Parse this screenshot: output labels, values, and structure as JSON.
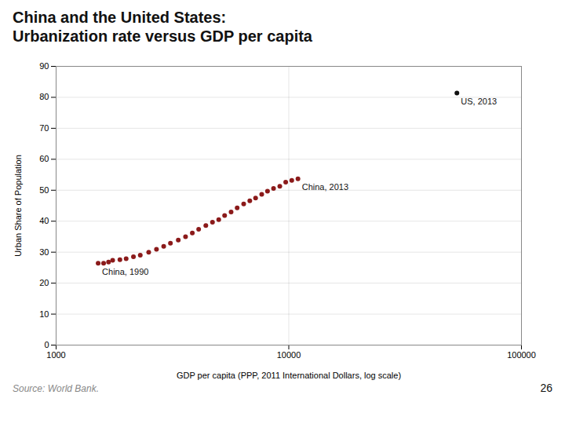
{
  "chart_data": {
    "type": "scatter",
    "title": "China and the United States:",
    "subtitle": "Urbanization rate versus GDP per capita",
    "xlabel": "GDP per capita (PPP, 2011 International Dollars, log scale)",
    "ylabel": "Urban Share of Population",
    "source": "Source: World Bank.",
    "page_number": "26",
    "log": "x",
    "grid": true,
    "series": [
      {
        "color": "#8b1a1a",
        "x": [
          1516,
          1600,
          1680,
          1750,
          1880,
          2000,
          2150,
          2300,
          2500,
          2700,
          2900,
          3100,
          3350,
          3600,
          3850,
          4100,
          4400,
          4700,
          5000,
          5300,
          5650,
          6000,
          6400,
          6800,
          7200,
          7650,
          8100,
          8600,
          9150,
          9700,
          10300,
          10950
        ],
        "values": [
          26.4,
          26.4,
          26.8,
          27.4,
          27.6,
          27.9,
          28.5,
          29.0,
          30.0,
          30.9,
          31.9,
          32.9,
          33.9,
          35.0,
          36.2,
          37.4,
          38.6,
          39.7,
          40.5,
          41.8,
          43.0,
          44.3,
          45.6,
          46.6,
          47.5,
          48.7,
          49.7,
          50.6,
          51.3,
          52.6,
          53.2,
          53.7
        ]
      },
      {
        "color": "#111111",
        "x": [
          52800
        ],
        "values": [
          81.4
        ]
      }
    ],
    "annotations": [
      {
        "text": "China, 1990",
        "x": 1516,
        "y": 26.4
      },
      {
        "text": "China, 2013",
        "x": 10950,
        "y": 53.7
      },
      {
        "text": "US, 2013",
        "x": 52800,
        "y": 81.4
      }
    ],
    "xlim": [
      1000,
      100000
    ],
    "xticks": [
      1000,
      10000,
      100000
    ],
    "ylim": [
      0,
      90
    ],
    "yticks": [
      0,
      10,
      20,
      30,
      40,
      50,
      60,
      70,
      80,
      90
    ]
  }
}
